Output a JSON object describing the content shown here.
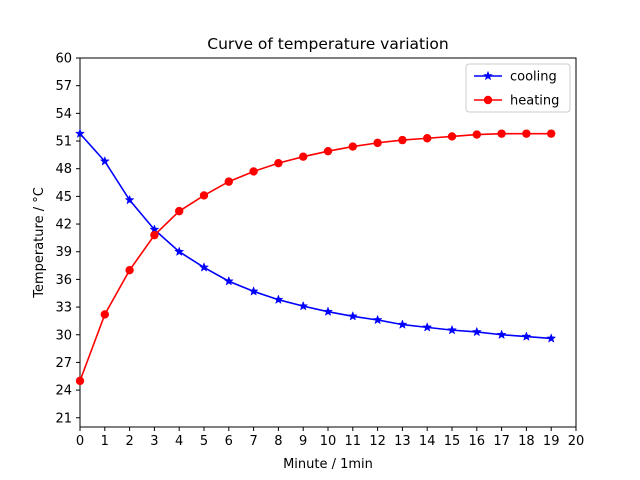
{
  "chart_data": {
    "type": "line",
    "title": "Curve of temperature variation",
    "xlabel": "Minute / 1min",
    "ylabel": "Temperature / °C",
    "xlim": [
      0,
      20
    ],
    "ylim": [
      20,
      60
    ],
    "x_ticks": [
      0,
      1,
      2,
      3,
      4,
      5,
      6,
      7,
      8,
      9,
      10,
      11,
      12,
      13,
      14,
      15,
      16,
      17,
      18,
      19,
      20
    ],
    "y_ticks": [
      21,
      24,
      27,
      30,
      33,
      36,
      39,
      42,
      45,
      48,
      51,
      54,
      57,
      60
    ],
    "grid": false,
    "legend_position": "top-right",
    "x": [
      0,
      1,
      2,
      3,
      4,
      5,
      6,
      7,
      8,
      9,
      10,
      11,
      12,
      13,
      14,
      15,
      16,
      17,
      18,
      19
    ],
    "series": [
      {
        "name": "cooling",
        "color": "#0000ff",
        "marker": "star",
        "values": [
          51.8,
          48.8,
          44.6,
          41.4,
          39.0,
          37.3,
          35.8,
          34.7,
          33.8,
          33.1,
          32.5,
          32.0,
          31.6,
          31.1,
          30.8,
          30.5,
          30.3,
          30.0,
          29.8,
          29.6
        ]
      },
      {
        "name": "heating",
        "color": "#ff0000",
        "marker": "circle",
        "values": [
          25.0,
          32.2,
          37.0,
          40.8,
          43.4,
          45.1,
          46.6,
          47.7,
          48.6,
          49.3,
          49.9,
          50.4,
          50.8,
          51.1,
          51.3,
          51.5,
          51.7,
          51.8,
          51.8,
          51.8
        ]
      }
    ]
  }
}
